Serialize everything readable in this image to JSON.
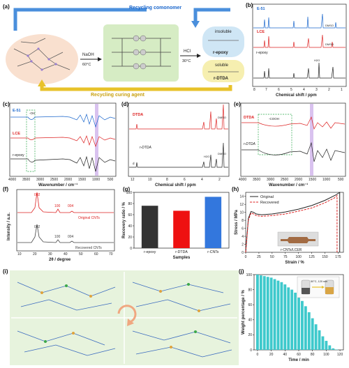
{
  "panel_a": {
    "label": "(a)",
    "top_arrow": "Recycling comonomer",
    "bottom_arrow": "Recycling curing agent",
    "step1_reagent": "NaOH",
    "step1_temp": "60°C",
    "step2_reagent": "HCl",
    "step2_temp": "30°C",
    "insoluble_label": "insoluble",
    "insoluble_product": "r-epoxy",
    "soluble_label": "soluble",
    "soluble_product": "r-DTDA"
  },
  "panel_b": {
    "label": "(b)",
    "xlabel": "Chemical shift / ppm",
    "ticks": [
      "8",
      "7",
      "6",
      "5",
      "4",
      "3",
      "2",
      "1"
    ],
    "traces": [
      {
        "name": "E-51",
        "color": "#1a66cc"
      },
      {
        "name": "LCE",
        "color": "#dd2222"
      },
      {
        "name": "r-epoxy",
        "color": "#222222"
      }
    ],
    "annotations": [
      "DMSO",
      "DMSO",
      "H2O"
    ]
  },
  "panel_c": {
    "label": "(c)",
    "xlabel": "Wavenumber / cm⁻¹",
    "ticks": [
      "4000",
      "3500",
      "3000",
      "2500",
      "2000",
      "1500",
      "1000",
      "500"
    ],
    "traces": [
      {
        "name": "E-51",
        "color": "#1a66cc"
      },
      {
        "name": "LCE",
        "color": "#dd2222"
      },
      {
        "name": "r-epoxy",
        "color": "#222222"
      }
    ],
    "annotations": [
      "-OH"
    ]
  },
  "panel_d": {
    "label": "(d)",
    "xlabel": "Chemical shift / ppm",
    "ticks": [
      "12",
      "10",
      "8",
      "6",
      "4",
      "2"
    ],
    "traces": [
      {
        "name": "DTDA",
        "color": "#dd2222"
      },
      {
        "name": "r-DTDA",
        "color": "#222222"
      }
    ],
    "annotations": [
      "DMSO",
      "DMSO",
      "H2O",
      "d"
    ]
  },
  "panel_e": {
    "label": "(e)",
    "xlabel": "Wavenumber / cm⁻¹",
    "ticks": [
      "4000",
      "3500",
      "3000",
      "2500",
      "2000",
      "1500",
      "1000",
      "500"
    ],
    "traces": [
      {
        "name": "DTDA",
        "color": "#dd2222"
      },
      {
        "name": "r-DTDA",
        "color": "#222222"
      }
    ],
    "annotations": [
      "-COOH"
    ]
  },
  "panel_f": {
    "label": "(f)",
    "xlabel": "2θ / degree",
    "ylabel": "Intensity / a.u.",
    "ticks": [
      "10",
      "20",
      "30",
      "40",
      "50",
      "60",
      "70"
    ],
    "traces": [
      {
        "name": "Original CNTs",
        "color": "#dd2222"
      },
      {
        "name": "Recovered CNTs",
        "color": "#444444"
      }
    ],
    "peaks_original": [
      "002",
      "100",
      "004"
    ],
    "peaks_recovered": [
      "002",
      "100",
      "004"
    ]
  },
  "panel_h": {
    "label": "(h)",
    "inset_label": "r-CNTs/LCER"
  },
  "panel_i": {
    "label": "(i)"
  },
  "panel_j": {
    "label": "(j)",
    "inset_label": "50°C, 120 min"
  },
  "chart_data": [
    {
      "type": "bar",
      "panel": "g",
      "title": "",
      "xlabel": "Samples",
      "ylabel": "Recovery ratio / %",
      "categories": [
        "r-epoxy",
        "r-DTDA",
        "r-CNTs"
      ],
      "values": [
        76,
        67,
        92
      ],
      "colors": [
        "#333333",
        "#ee1111",
        "#3377dd"
      ],
      "ylim": [
        0,
        100
      ],
      "yticks": [
        0,
        20,
        40,
        60,
        80,
        100
      ]
    },
    {
      "type": "line",
      "panel": "h",
      "title": "",
      "xlabel": "Strain / %",
      "ylabel": "Stress / MPa",
      "xlim": [
        0,
        185
      ],
      "ylim": [
        0,
        15
      ],
      "xticks": [
        0,
        25,
        50,
        75,
        100,
        125,
        150,
        175
      ],
      "yticks": [
        0,
        2,
        4,
        6,
        8,
        10,
        12,
        14
      ],
      "legend_position": "top-left",
      "series": [
        {
          "name": "Original",
          "color": "#222222",
          "x": [
            0,
            5,
            10,
            15,
            20,
            30,
            50,
            75,
            100,
            125,
            150,
            170,
            178,
            178
          ],
          "y": [
            0,
            8.5,
            10.2,
            10.0,
            9.6,
            9.4,
            9.6,
            10.1,
            10.8,
            11.7,
            13.0,
            14.3,
            15.0,
            0
          ]
        },
        {
          "name": "Recovered",
          "color": "#dd2222",
          "x": [
            0,
            5,
            10,
            15,
            20,
            30,
            50,
            75,
            100,
            125,
            150,
            168,
            173,
            173
          ],
          "y": [
            0,
            8.0,
            9.8,
            9.6,
            9.2,
            9.0,
            9.2,
            9.6,
            10.3,
            11.1,
            12.4,
            13.6,
            14.2,
            0
          ]
        }
      ]
    },
    {
      "type": "bar",
      "panel": "j",
      "title": "",
      "xlabel": "Time / min",
      "ylabel": "Weight percentage / %",
      "x": [
        0,
        5,
        10,
        15,
        20,
        25,
        30,
        35,
        40,
        45,
        50,
        55,
        60,
        65,
        70,
        75,
        80,
        85,
        90,
        95,
        100,
        105,
        110,
        115,
        120
      ],
      "values": [
        100,
        99,
        98,
        97,
        96,
        94,
        92,
        90,
        87,
        83,
        80,
        76,
        71,
        65,
        58,
        50,
        42,
        34,
        26,
        18,
        12,
        6,
        2,
        0.5,
        0
      ],
      "color": "#3ec9cc",
      "xlim": [
        -5,
        125
      ],
      "ylim": [
        0,
        100
      ],
      "xticks": [
        0,
        20,
        40,
        60,
        80,
        100,
        120
      ],
      "yticks": [
        0,
        20,
        40,
        60,
        80,
        100
      ]
    }
  ]
}
